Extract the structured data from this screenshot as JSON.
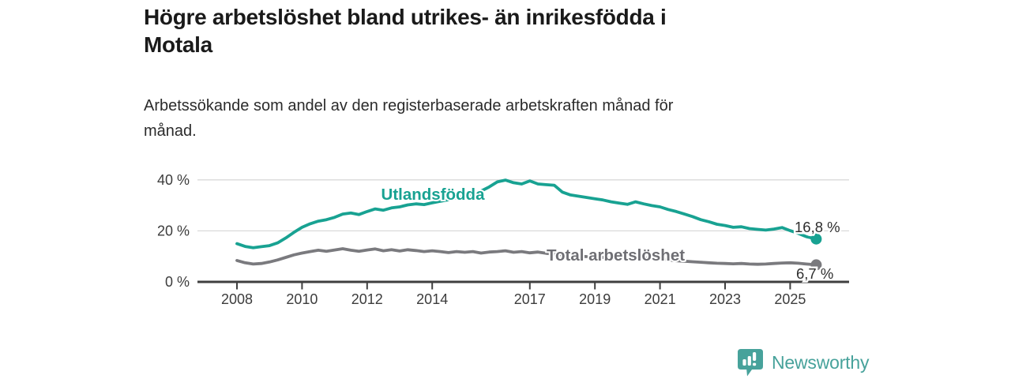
{
  "header": {
    "title_lines": [
      "Högre arbetslöshet bland utrikes- än inrikesfödda i",
      "Motala"
    ],
    "subtitle_lines": [
      "Arbetssökande som andel av den registerbaserade arbetskraften månad för",
      "månad."
    ]
  },
  "chart_data": {
    "type": "line",
    "title": "Högre arbetslöshet bland utrikes- än inrikesfödda i Motala",
    "subtitle": "Arbetssökande som andel av den registerbaserade arbetskraften månad för månad.",
    "unit": "%",
    "grid": true,
    "legend_position": "inline",
    "x_ticks": [
      2008,
      2010,
      2012,
      2014,
      2017,
      2019,
      2021,
      2023,
      2025
    ],
    "y_ticks": [
      {
        "v": 0,
        "label": "0 %"
      },
      {
        "v": 20,
        "label": "20 %"
      },
      {
        "v": 40,
        "label": "40 %"
      }
    ],
    "xlim": [
      2006.8,
      2026.8
    ],
    "ylim": [
      0,
      42
    ],
    "style": {
      "grid_color": "#dadada",
      "axis_color": "#3f3f3f",
      "text_color": "#3c3c3c"
    },
    "series": [
      {
        "name": "Utlandsfödda",
        "color": "#18a292",
        "end_label": "16,8 %",
        "end_value": 16.8,
        "points": [
          [
            2008.0,
            15.0
          ],
          [
            2008.25,
            13.9
          ],
          [
            2008.5,
            13.4
          ],
          [
            2008.75,
            13.8
          ],
          [
            2009.0,
            14.2
          ],
          [
            2009.25,
            15.3
          ],
          [
            2009.5,
            17.2
          ],
          [
            2009.75,
            19.4
          ],
          [
            2010.0,
            21.4
          ],
          [
            2010.25,
            22.8
          ],
          [
            2010.5,
            23.8
          ],
          [
            2010.75,
            24.4
          ],
          [
            2011.0,
            25.3
          ],
          [
            2011.25,
            26.6
          ],
          [
            2011.5,
            27.0
          ],
          [
            2011.75,
            26.4
          ],
          [
            2012.0,
            27.6
          ],
          [
            2012.25,
            28.6
          ],
          [
            2012.5,
            28.1
          ],
          [
            2012.75,
            29.0
          ],
          [
            2013.0,
            29.4
          ],
          [
            2013.25,
            30.2
          ],
          [
            2013.5,
            30.6
          ],
          [
            2013.75,
            30.3
          ],
          [
            2014.0,
            31.0
          ],
          [
            2014.25,
            31.6
          ],
          [
            2014.5,
            32.2
          ],
          [
            2014.75,
            33.0
          ],
          [
            2015.0,
            33.6
          ],
          [
            2015.25,
            34.6
          ],
          [
            2015.5,
            35.6
          ],
          [
            2015.75,
            37.2
          ],
          [
            2016.0,
            39.2
          ],
          [
            2016.25,
            39.9
          ],
          [
            2016.5,
            38.9
          ],
          [
            2016.75,
            38.4
          ],
          [
            2017.0,
            39.6
          ],
          [
            2017.25,
            38.4
          ],
          [
            2017.5,
            38.1
          ],
          [
            2017.75,
            37.9
          ],
          [
            2018.0,
            35.2
          ],
          [
            2018.25,
            34.1
          ],
          [
            2018.5,
            33.6
          ],
          [
            2018.75,
            33.1
          ],
          [
            2019.0,
            32.6
          ],
          [
            2019.25,
            32.1
          ],
          [
            2019.5,
            31.4
          ],
          [
            2019.75,
            30.9
          ],
          [
            2020.0,
            30.4
          ],
          [
            2020.25,
            31.4
          ],
          [
            2020.5,
            30.6
          ],
          [
            2020.75,
            29.9
          ],
          [
            2021.0,
            29.4
          ],
          [
            2021.25,
            28.4
          ],
          [
            2021.5,
            27.6
          ],
          [
            2021.75,
            26.6
          ],
          [
            2022.0,
            25.6
          ],
          [
            2022.25,
            24.4
          ],
          [
            2022.5,
            23.6
          ],
          [
            2022.75,
            22.6
          ],
          [
            2023.0,
            22.1
          ],
          [
            2023.25,
            21.4
          ],
          [
            2023.5,
            21.6
          ],
          [
            2023.75,
            20.9
          ],
          [
            2024.0,
            20.6
          ],
          [
            2024.25,
            20.3
          ],
          [
            2024.5,
            20.7
          ],
          [
            2024.75,
            21.3
          ],
          [
            2025.0,
            20.1
          ],
          [
            2025.25,
            19.0
          ],
          [
            2025.5,
            17.7
          ],
          [
            2025.8,
            16.8
          ]
        ]
      },
      {
        "name": "Total arbetslöshet",
        "color": "#7a7a7e",
        "end_label": "6,7 %",
        "end_value": 6.7,
        "points": [
          [
            2008.0,
            8.4
          ],
          [
            2008.25,
            7.5
          ],
          [
            2008.5,
            7.0
          ],
          [
            2008.75,
            7.2
          ],
          [
            2009.0,
            7.8
          ],
          [
            2009.25,
            8.6
          ],
          [
            2009.5,
            9.6
          ],
          [
            2009.75,
            10.6
          ],
          [
            2010.0,
            11.3
          ],
          [
            2010.25,
            11.9
          ],
          [
            2010.5,
            12.4
          ],
          [
            2010.75,
            12.0
          ],
          [
            2011.0,
            12.5
          ],
          [
            2011.25,
            13.0
          ],
          [
            2011.5,
            12.4
          ],
          [
            2011.75,
            12.0
          ],
          [
            2012.0,
            12.5
          ],
          [
            2012.25,
            12.9
          ],
          [
            2012.5,
            12.2
          ],
          [
            2012.75,
            12.6
          ],
          [
            2013.0,
            12.1
          ],
          [
            2013.25,
            12.6
          ],
          [
            2013.5,
            12.3
          ],
          [
            2013.75,
            11.9
          ],
          [
            2014.0,
            12.2
          ],
          [
            2014.25,
            11.9
          ],
          [
            2014.5,
            11.5
          ],
          [
            2014.75,
            11.9
          ],
          [
            2015.0,
            11.6
          ],
          [
            2015.25,
            11.9
          ],
          [
            2015.5,
            11.3
          ],
          [
            2015.75,
            11.7
          ],
          [
            2016.0,
            11.9
          ],
          [
            2016.25,
            12.2
          ],
          [
            2016.5,
            11.6
          ],
          [
            2016.75,
            11.9
          ],
          [
            2017.0,
            11.4
          ],
          [
            2017.25,
            11.7
          ],
          [
            2017.5,
            11.2
          ],
          [
            2017.75,
            10.9
          ],
          [
            2018.0,
            10.6
          ],
          [
            2018.25,
            10.3
          ],
          [
            2018.5,
            10.1
          ],
          [
            2018.75,
            9.9
          ],
          [
            2019.0,
            9.8
          ],
          [
            2019.25,
            9.6
          ],
          [
            2019.5,
            9.4
          ],
          [
            2019.75,
            9.3
          ],
          [
            2020.0,
            9.1
          ],
          [
            2020.25,
            9.7
          ],
          [
            2020.5,
            9.4
          ],
          [
            2020.75,
            9.1
          ],
          [
            2021.0,
            8.9
          ],
          [
            2021.25,
            8.6
          ],
          [
            2021.5,
            8.3
          ],
          [
            2021.75,
            8.1
          ],
          [
            2022.0,
            7.9
          ],
          [
            2022.25,
            7.7
          ],
          [
            2022.5,
            7.5
          ],
          [
            2022.75,
            7.3
          ],
          [
            2023.0,
            7.2
          ],
          [
            2023.25,
            7.1
          ],
          [
            2023.5,
            7.2
          ],
          [
            2023.75,
            7.0
          ],
          [
            2024.0,
            6.9
          ],
          [
            2024.25,
            7.0
          ],
          [
            2024.5,
            7.2
          ],
          [
            2024.75,
            7.4
          ],
          [
            2025.0,
            7.5
          ],
          [
            2025.25,
            7.3
          ],
          [
            2025.5,
            7.0
          ],
          [
            2025.8,
            6.7
          ]
        ]
      }
    ]
  },
  "branding": {
    "name": "Newsworthy",
    "color": "#47a29b",
    "icon": "newsworthy-chart-pin-icon"
  }
}
